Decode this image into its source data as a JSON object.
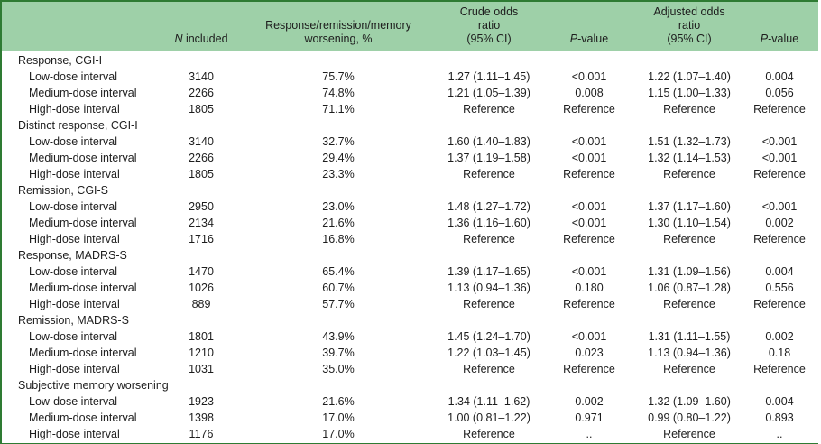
{
  "colors": {
    "header_bg": "#9ed0a8",
    "border_green": "#2e7b33",
    "text": "#1d1d1d"
  },
  "table": {
    "header": {
      "label_col": "",
      "n_included": {
        "italic": "N",
        "rest": " included"
      },
      "outcome_pct": "Response/remission/memory\nworsening, %",
      "crude_or": "Crude odds\nratio\n(95% CI)",
      "crude_p": {
        "italic": "P",
        "rest": "-value"
      },
      "adjusted_or": "Adjusted odds\nratio\n(95% CI)",
      "adjusted_p": {
        "italic": "P",
        "rest": "-value"
      }
    },
    "sections": [
      {
        "title": "Response, CGI-I",
        "rows": [
          {
            "label": "Low-dose interval",
            "n": "3140",
            "pct": "75.7%",
            "crude_or": "1.27 (1.11–1.45)",
            "crude_p": "<0.001",
            "adj_or": "1.22 (1.07–1.40)",
            "adj_p": "0.004"
          },
          {
            "label": "Medium-dose interval",
            "n": "2266",
            "pct": "74.8%",
            "crude_or": "1.21 (1.05–1.39)",
            "crude_p": "0.008",
            "adj_or": "1.15 (1.00–1.33)",
            "adj_p": "0.056"
          },
          {
            "label": "High-dose interval",
            "n": "1805",
            "pct": "71.1%",
            "crude_or": "Reference",
            "crude_p": "Reference",
            "adj_or": "Reference",
            "adj_p": "Reference"
          }
        ]
      },
      {
        "title": "Distinct response, CGI-I",
        "rows": [
          {
            "label": "Low-dose interval",
            "n": "3140",
            "pct": "32.7%",
            "crude_or": "1.60 (1.40–1.83)",
            "crude_p": "<0.001",
            "adj_or": "1.51 (1.32–1.73)",
            "adj_p": "<0.001"
          },
          {
            "label": "Medium-dose interval",
            "n": "2266",
            "pct": "29.4%",
            "crude_or": "1.37 (1.19–1.58)",
            "crude_p": "<0.001",
            "adj_or": "1.32 (1.14–1.53)",
            "adj_p": "<0.001"
          },
          {
            "label": "High-dose interval",
            "n": "1805",
            "pct": "23.3%",
            "crude_or": "Reference",
            "crude_p": "Reference",
            "adj_or": "Reference",
            "adj_p": "Reference"
          }
        ]
      },
      {
        "title": "Remission, CGI-S",
        "rows": [
          {
            "label": "Low-dose interval",
            "n": "2950",
            "pct": "23.0%",
            "crude_or": "1.48 (1.27–1.72)",
            "crude_p": "<0.001",
            "adj_or": "1.37 (1.17–1.60)",
            "adj_p": "<0.001"
          },
          {
            "label": "Medium-dose interval",
            "n": "2134",
            "pct": "21.6%",
            "crude_or": "1.36 (1.16–1.60)",
            "crude_p": "<0.001",
            "adj_or": "1.30 (1.10–1.54)",
            "adj_p": "0.002"
          },
          {
            "label": "High-dose interval",
            "n": "1716",
            "pct": "16.8%",
            "crude_or": "Reference",
            "crude_p": "Reference",
            "adj_or": "Reference",
            "adj_p": "Reference"
          }
        ]
      },
      {
        "title": "Response, MADRS-S",
        "rows": [
          {
            "label": "Low-dose interval",
            "n": "1470",
            "pct": "65.4%",
            "crude_or": "1.39 (1.17–1.65)",
            "crude_p": "<0.001",
            "adj_or": "1.31 (1.09–1.56)",
            "adj_p": "0.004"
          },
          {
            "label": "Medium-dose interval",
            "n": "1026",
            "pct": "60.7%",
            "crude_or": "1.13 (0.94–1.36)",
            "crude_p": "0.180",
            "adj_or": "1.06 (0.87–1.28)",
            "adj_p": "0.556"
          },
          {
            "label": "High-dose interval",
            "n": "889",
            "pct": "57.7%",
            "crude_or": "Reference",
            "crude_p": "Reference",
            "adj_or": "Reference",
            "adj_p": "Reference"
          }
        ]
      },
      {
        "title": "Remission, MADRS-S",
        "rows": [
          {
            "label": "Low-dose interval",
            "n": "1801",
            "pct": "43.9%",
            "crude_or": "1.45 (1.24–1.70)",
            "crude_p": "<0.001",
            "adj_or": "1.31 (1.11–1.55)",
            "adj_p": "0.002"
          },
          {
            "label": "Medium-dose interval",
            "n": "1210",
            "pct": "39.7%",
            "crude_or": "1.22 (1.03–1.45)",
            "crude_p": "0.023",
            "adj_or": "1.13 (0.94–1.36)",
            "adj_p": "0.18"
          },
          {
            "label": "High-dose interval",
            "n": "1031",
            "pct": "35.0%",
            "crude_or": "Reference",
            "crude_p": "Reference",
            "adj_or": "Reference",
            "adj_p": "Reference"
          }
        ]
      },
      {
        "title": "Subjective memory worsening",
        "rows": [
          {
            "label": "Low-dose interval",
            "n": "1923",
            "pct": "21.6%",
            "crude_or": "1.34 (1.11–1.62)",
            "crude_p": "0.002",
            "adj_or": "1.32 (1.09–1.60)",
            "adj_p": "0.004"
          },
          {
            "label": "Medium-dose interval",
            "n": "1398",
            "pct": "17.0%",
            "crude_or": "1.00 (0.81–1.22)",
            "crude_p": "0.971",
            "adj_or": "0.99 (0.80–1.22)",
            "adj_p": "0.893"
          },
          {
            "label": "High-dose interval",
            "n": "1176",
            "pct": "17.0%",
            "crude_or": "Reference",
            "crude_p": "..",
            "adj_or": "Reference",
            "adj_p": ".."
          }
        ]
      }
    ]
  }
}
